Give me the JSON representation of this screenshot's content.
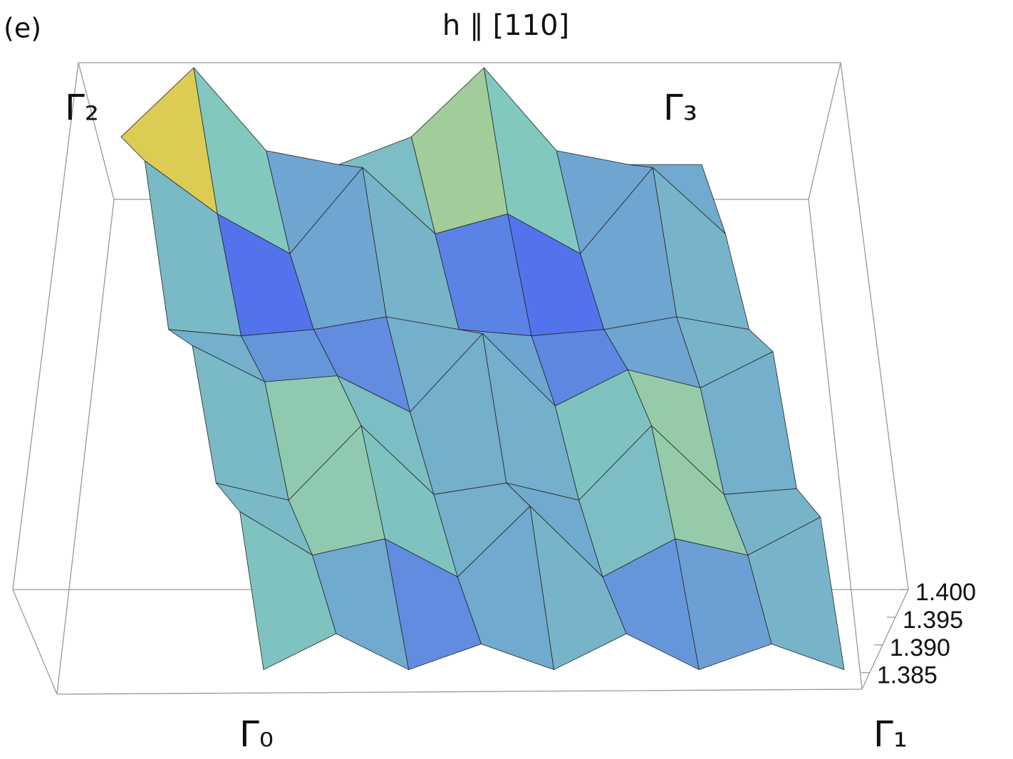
{
  "chart_data": {
    "type": "surface",
    "panel": "(e)",
    "title": "h ∥ [110]",
    "corner_labels": [
      "Γ₀",
      "Γ₁",
      "Γ₂",
      "Γ₃"
    ],
    "z": [
      [
        1.384,
        1.391,
        1.384,
        1.389,
        1.384,
        1.391,
        1.384,
        1.389,
        1.384
      ],
      [
        1.398,
        1.39,
        1.393,
        1.386,
        1.399,
        1.386,
        1.393,
        1.39,
        1.397
      ],
      [
        1.388,
        1.385,
        1.398,
        1.386,
        1.388,
        1.385,
        1.398,
        1.386,
        1.387
      ],
      [
        1.397,
        1.391,
        1.392,
        1.386,
        1.399,
        1.387,
        1.393,
        1.39,
        1.396
      ],
      [
        1.386,
        1.385,
        1.386,
        1.388,
        1.386,
        1.385,
        1.386,
        1.388,
        1.386
      ],
      [
        1.399,
        1.391,
        1.385,
        1.398,
        1.388,
        1.391,
        1.385,
        1.398,
        1.388
      ],
      [
        1.39,
        1.4,
        1.388,
        1.386,
        1.39,
        1.4,
        1.388,
        1.386,
        1.386
      ]
    ],
    "zlim": [
      1.382,
      1.4
    ],
    "zticks": [
      {
        "value": 1.385,
        "label": "1.385"
      },
      {
        "value": 1.39,
        "label": "1.390"
      },
      {
        "value": 1.395,
        "label": "1.395"
      },
      {
        "value": 1.4,
        "label": "1.400"
      }
    ],
    "mesh": true
  }
}
